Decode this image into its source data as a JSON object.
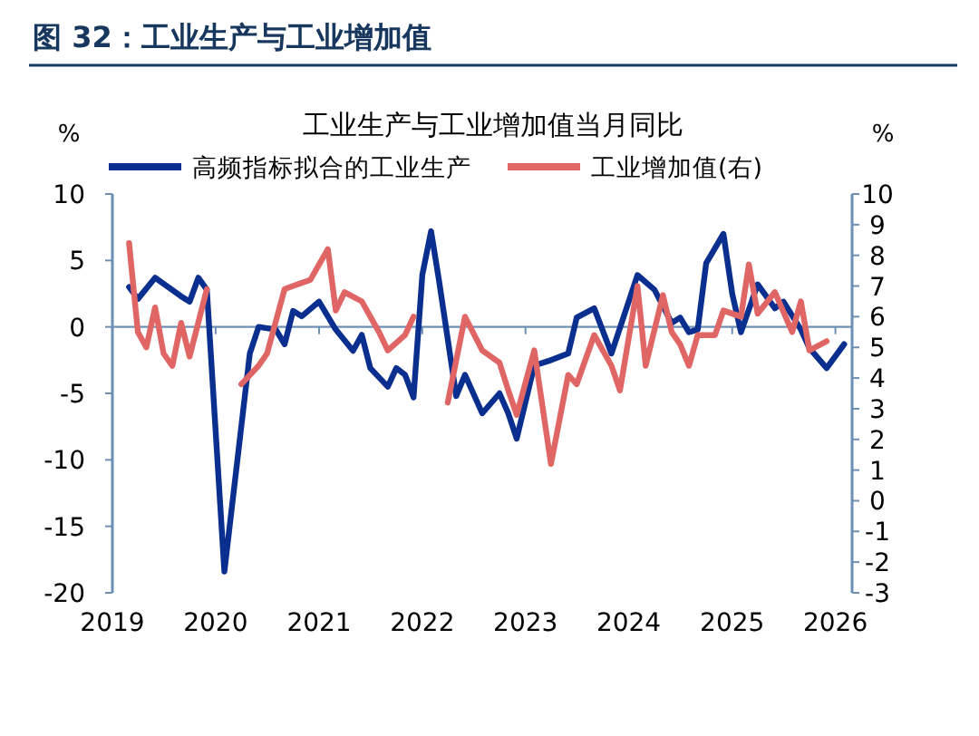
{
  "chart_data": {
    "type": "line",
    "title": "图 32：工业生产与工业增加值",
    "subtitle": "工业生产与工业增加值当月同比",
    "ylabel": "%",
    "y2label": "%",
    "xlim": [
      "2019-01",
      "2026-03"
    ],
    "xticks": [
      {
        "value": "2019-01",
        "label": "2019"
      },
      {
        "value": "2020-01",
        "label": "2020"
      },
      {
        "value": "2021-01",
        "label": "2021"
      },
      {
        "value": "2022-01",
        "label": "2022"
      },
      {
        "value": "2023-01",
        "label": "2023"
      },
      {
        "value": "2024-01",
        "label": "2024"
      },
      {
        "value": "2025-01",
        "label": "2025"
      },
      {
        "value": "2026-01",
        "label": "2026"
      }
    ],
    "ylim": [
      -20,
      10
    ],
    "yticks": [
      -20,
      -15,
      -10,
      -5,
      0,
      5,
      10
    ],
    "y2lim": [
      -3,
      10
    ],
    "y2ticks": [
      -3,
      -2,
      -1,
      0,
      1,
      2,
      3,
      4,
      5,
      6,
      7,
      8,
      9,
      10
    ],
    "legend": "top",
    "grid": false,
    "ref_lines": [
      {
        "axis": "y",
        "value": 0,
        "color": "#6d8fb6"
      }
    ],
    "series": [
      {
        "name": "高频指标拟合的工业生产",
        "color": "#0b2f8f",
        "x": [
          "2019-03",
          "2019-04",
          "2019-06",
          "2019-09",
          "2019-10",
          "2019-11",
          "2019-12",
          "2020-02",
          "2020-05",
          "2020-06",
          "2020-08",
          "2020-09",
          "2020-10",
          "2020-11",
          "2021-01",
          "2021-03",
          "2021-05",
          "2021-06",
          "2021-07",
          "2021-09",
          "2021-10",
          "2021-11",
          "2021-12",
          "2022-01",
          "2022-02",
          "2022-03",
          "2022-05",
          "2022-06",
          "2022-08",
          "2022-10",
          "2022-11",
          "2022-12",
          "2023-02",
          "2023-04",
          "2023-06",
          "2023-07",
          "2023-09",
          "2023-11",
          "2024-02",
          "2024-04",
          "2024-06",
          "2024-07",
          "2024-08",
          "2024-09",
          "2024-10",
          "2024-12",
          "2025-01",
          "2025-02",
          "2025-04",
          "2025-06",
          "2025-07",
          "2025-09",
          "2025-10",
          "2025-12",
          "2026-02"
        ],
        "values": [
          3.0,
          2.1,
          3.7,
          2.3,
          1.9,
          3.7,
          2.8,
          -18.4,
          -2.0,
          0,
          -0.2,
          -1.3,
          1.2,
          0.8,
          1.9,
          -0.2,
          -1.8,
          -0.6,
          -3.1,
          -4.5,
          -3.1,
          -3.6,
          -5.3,
          3.9,
          7.2,
          3.5,
          -5.2,
          -3.6,
          -6.5,
          -5.0,
          -6.5,
          -8.4,
          -2.9,
          -2.5,
          -2.0,
          0.7,
          1.4,
          -2.0,
          3.9,
          2.8,
          0.3,
          0.7,
          -0.4,
          -0.2,
          4.8,
          7.0,
          2.5,
          -0.4,
          3.2,
          1.4,
          1.9,
          -0.2,
          -1.6,
          -3.1,
          -1.3
        ]
      },
      {
        "name": "工业增加值(右)",
        "color": "#e06666",
        "axis": "y2",
        "x": [
          "2019-03",
          "2019-04",
          "2019-05",
          "2019-06",
          "2019-07",
          "2019-08",
          "2019-09",
          "2019-10",
          "2019-12",
          "2020-02",
          "2020-04",
          "2020-06",
          "2020-07",
          "2020-09",
          "2020-10",
          "2020-12",
          "2021-02",
          "2021-03",
          "2021-04",
          "2021-06",
          "2021-08",
          "2021-09",
          "2021-11",
          "2021-12",
          "2022-01",
          "2022-04",
          "2022-06",
          "2022-08",
          "2022-10",
          "2022-11",
          "2022-12",
          "2023-02",
          "2023-04",
          "2023-06",
          "2023-07",
          "2023-09",
          "2023-11",
          "2023-12",
          "2024-02",
          "2024-03",
          "2024-05",
          "2024-06",
          "2024-07",
          "2024-08",
          "2024-09",
          "2024-11",
          "2024-12",
          "2025-02",
          "2025-03",
          "2025-04",
          "2025-06",
          "2025-08",
          "2025-09",
          "2025-10",
          "2025-12"
        ],
        "values": [
          8.4,
          5.5,
          5.0,
          6.3,
          4.8,
          4.4,
          5.8,
          4.7,
          6.9,
          null,
          3.8,
          4.4,
          4.8,
          6.9,
          7.0,
          7.2,
          8.2,
          6.2,
          6.8,
          6.5,
          5.5,
          4.9,
          5.4,
          6.0,
          null,
          3.2,
          6.0,
          4.9,
          4.5,
          3.6,
          2.8,
          4.9,
          1.2,
          4.1,
          3.8,
          5.4,
          4.4,
          3.6,
          7.0,
          4.4,
          6.7,
          5.5,
          5.1,
          4.4,
          5.4,
          5.4,
          6.2,
          6.0,
          7.7,
          6.1,
          6.8,
          5.5,
          6.5,
          4.9,
          5.2
        ]
      }
    ]
  }
}
